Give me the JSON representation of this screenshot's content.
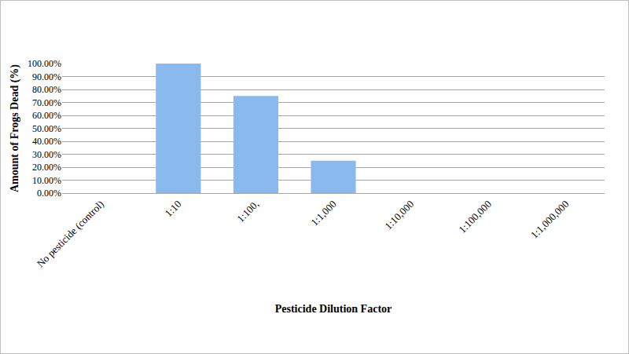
{
  "chart_data": {
    "type": "bar",
    "x_label": "Pesticide Dilution Factor",
    "y_label": "Amount of Frogs Dead (%)",
    "categories": [
      "No pesticide (control)",
      "1:10",
      "1:100,",
      "1:1,000",
      "1:10,000",
      "1:100,000",
      "1:1,000,000"
    ],
    "values": [
      0,
      100,
      75,
      25,
      0,
      0,
      0
    ],
    "color": "#8ab9ee",
    "ylim": [
      0,
      100
    ],
    "yticks": [
      {
        "value": 0,
        "label": "0.00%"
      },
      {
        "value": 10,
        "label": "10.00%"
      },
      {
        "value": 20,
        "label": "20.00%"
      },
      {
        "value": 30,
        "label": "30.00%"
      },
      {
        "value": 40,
        "label": "40.00%"
      },
      {
        "value": 50,
        "label": "50.00%"
      },
      {
        "value": 60,
        "label": "60.00%"
      },
      {
        "value": 70,
        "label": "70.00%"
      },
      {
        "value": 80,
        "label": "80.00%"
      },
      {
        "value": 90,
        "label": "90.00%"
      },
      {
        "value": 100,
        "label": "100.00%"
      }
    ],
    "grid": true
  }
}
